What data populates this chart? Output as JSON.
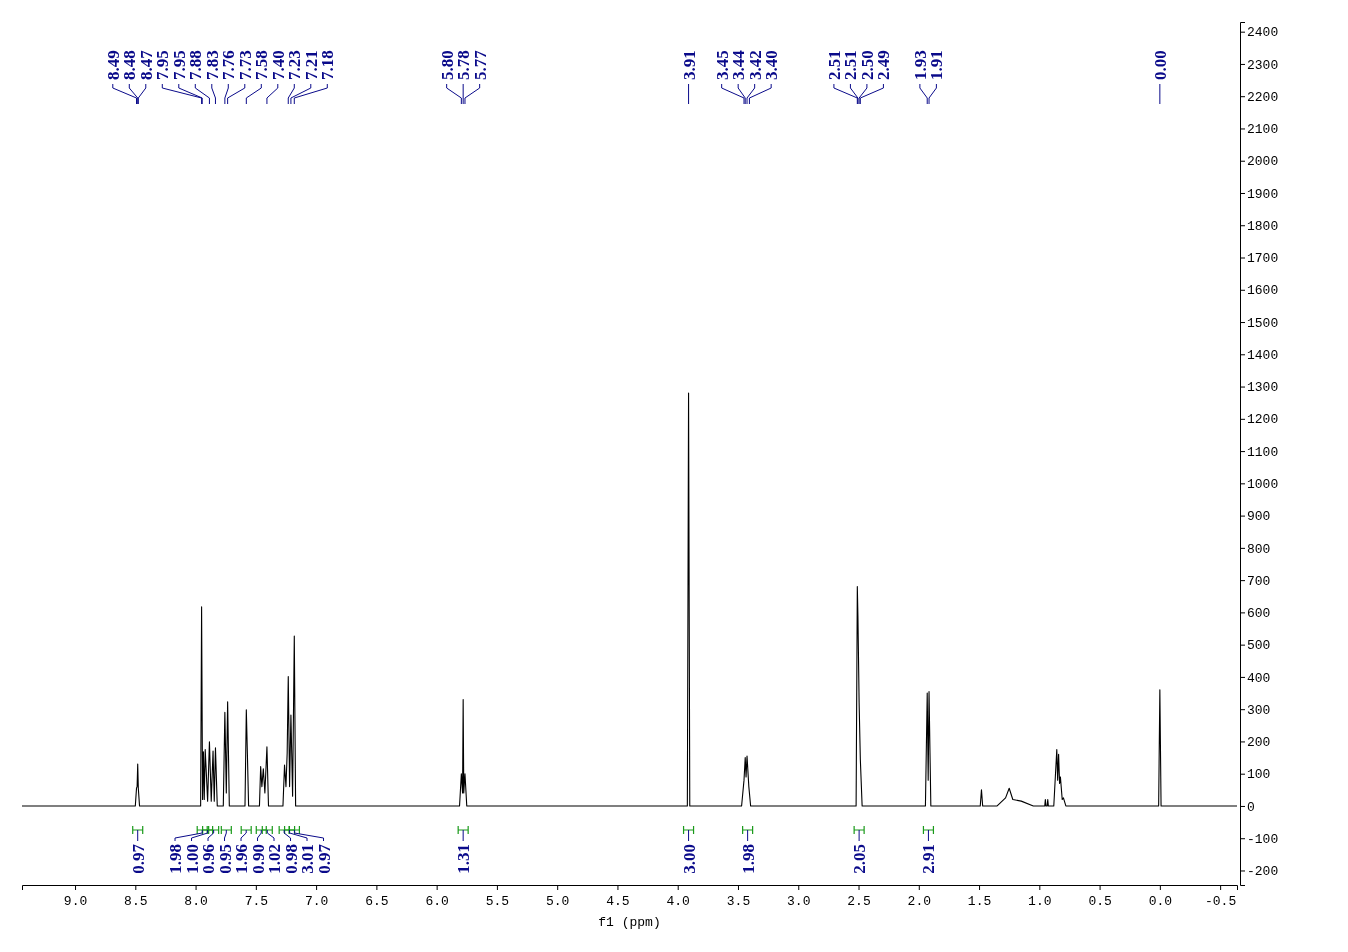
{
  "chart_data": {
    "type": "line",
    "xlabel": "f1 (ppm)",
    "xlim": [
      9.44,
      -0.64
    ],
    "ylim": [
      -245,
      2430
    ],
    "xticks": [
      {
        "value": 9,
        "label": "9.0"
      },
      {
        "value": 8.5,
        "label": "8.5"
      },
      {
        "value": 8,
        "label": "8.0"
      },
      {
        "value": 7.5,
        "label": "7.5"
      },
      {
        "value": 7,
        "label": "7.0"
      },
      {
        "value": 6.5,
        "label": "6.5"
      },
      {
        "value": 6,
        "label": "6.0"
      },
      {
        "value": 5.5,
        "label": "5.5"
      },
      {
        "value": 5,
        "label": "5.0"
      },
      {
        "value": 4.5,
        "label": "4.5"
      },
      {
        "value": 4,
        "label": "4.0"
      },
      {
        "value": 3.5,
        "label": "3.5"
      },
      {
        "value": 3,
        "label": "3.0"
      },
      {
        "value": 2.5,
        "label": "2.5"
      },
      {
        "value": 2,
        "label": "2.0"
      },
      {
        "value": 1.5,
        "label": "1.5"
      },
      {
        "value": 1,
        "label": "1.0"
      },
      {
        "value": 0.5,
        "label": "0.5"
      },
      {
        "value": 0,
        "label": "0.0"
      },
      {
        "value": -0.5,
        "label": "-0.5"
      }
    ],
    "yticks": [
      -200,
      -100,
      0,
      100,
      200,
      300,
      400,
      500,
      600,
      700,
      800,
      900,
      1000,
      1100,
      1200,
      1300,
      1400,
      1500,
      1600,
      1700,
      1800,
      1900,
      2000,
      2100,
      2200,
      2300,
      2400
    ],
    "grid": false,
    "marker": "none",
    "line_style": "solid",
    "series": [
      {
        "color": "#000000",
        "x": [
          9.44,
          8.5,
          8.49,
          8.485,
          8.48,
          8.475,
          8.465,
          7.97,
          7.958,
          7.95,
          7.942,
          7.935,
          7.928,
          7.92,
          7.9,
          7.885,
          7.87,
          7.855,
          7.845,
          7.835,
          7.82,
          7.77,
          7.757,
          7.745,
          7.734,
          7.72,
          7.59,
          7.579,
          7.57,
          7.56,
          7.47,
          7.46,
          7.45,
          7.438,
          7.425,
          7.408,
          7.395,
          7.275,
          7.262,
          7.25,
          7.24,
          7.231,
          7.22,
          7.209,
          7.195,
          7.181,
          7.17,
          5.81,
          5.795,
          5.785,
          5.78,
          5.775,
          5.765,
          5.75,
          3.92,
          3.91,
          3.9,
          3.47,
          3.45,
          3.44,
          3.433,
          3.425,
          3.41,
          3.395,
          2.52,
          2.51,
          2.505,
          2.495,
          2.485,
          2.47,
          1.945,
          1.93,
          1.922,
          1.915,
          1.9,
          1.49,
          1.48,
          1.47,
          1.35,
          1.28,
          1.25,
          1.22,
          1.15,
          1.05,
          0.955,
          0.95,
          0.945,
          0.935,
          0.93,
          0.925,
          0.88,
          0.855,
          0.848,
          0.84,
          0.832,
          0.825,
          0.81,
          0.8,
          0.78,
          0.01,
          0,
          -0.01,
          -0.64
        ],
        "values": [
          0,
          0,
          55,
          60,
          130,
          55,
          0,
          0,
          0,
          617,
          20,
          168,
          20,
          175,
          15,
          199,
          15,
          170,
          15,
          180,
          0,
          0,
          290,
          40,
          323,
          0,
          0,
          298,
          160,
          0,
          0,
          122,
          60,
          115,
          40,
          183,
          0,
          0,
          127,
          60,
          165,
          401,
          60,
          282,
          30,
          527,
          0,
          0,
          100,
          40,
          330,
          40,
          100,
          0,
          0,
          1280,
          0,
          0,
          80,
          150,
          90,
          155,
          60,
          0,
          0,
          680,
          590,
          320,
          145,
          0,
          0,
          350,
          80,
          355,
          0,
          0,
          50,
          0,
          0,
          25,
          55,
          20,
          15,
          0,
          0,
          20,
          0,
          0,
          20,
          0,
          0,
          175,
          80,
          160,
          70,
          90,
          20,
          25,
          0,
          0,
          360,
          0,
          0
        ]
      }
    ],
    "annotations": [
      {
        "text": "8.49",
        "x": 8.49
      },
      {
        "text": "8.48",
        "x": 8.48
      },
      {
        "text": "8.47",
        "x": 8.475
      },
      {
        "text": "7.95",
        "x": 7.95
      },
      {
        "text": "7.95",
        "x": 7.945
      },
      {
        "text": "7.88",
        "x": 7.885
      },
      {
        "text": "7.83",
        "x": 7.835
      },
      {
        "text": "7.76",
        "x": 7.757
      },
      {
        "text": "7.73",
        "x": 7.734
      },
      {
        "text": "7.58",
        "x": 7.579
      },
      {
        "text": "7.40",
        "x": 7.408
      },
      {
        "text": "7.23",
        "x": 7.231
      },
      {
        "text": "7.21",
        "x": 7.209
      },
      {
        "text": "7.18",
        "x": 7.181
      },
      {
        "text": "5.80",
        "x": 5.795
      },
      {
        "text": "5.78",
        "x": 5.78
      },
      {
        "text": "5.77",
        "x": 5.765
      },
      {
        "text": "3.91",
        "x": 3.91
      },
      {
        "text": "3.45",
        "x": 3.45
      },
      {
        "text": "3.44",
        "x": 3.44
      },
      {
        "text": "3.42",
        "x": 3.425
      },
      {
        "text": "3.40",
        "x": 3.405
      },
      {
        "text": "2.51",
        "x": 2.51
      },
      {
        "text": "2.51",
        "x": 2.505
      },
      {
        "text": "2.50",
        "x": 2.495
      },
      {
        "text": "2.49",
        "x": 2.485
      },
      {
        "text": "1.93",
        "x": 1.93
      },
      {
        "text": "1.91",
        "x": 1.915
      },
      {
        "text": "0.00",
        "x": 0
      },
      {
        "text": "0.97",
        "x": 8.48
      },
      {
        "text": "1.98",
        "x": 7.945
      },
      {
        "text": "1.00",
        "x": 7.9
      },
      {
        "text": "0.96",
        "x": 7.85
      },
      {
        "text": "0.95",
        "x": 7.745
      },
      {
        "text": "1.96",
        "x": 7.58
      },
      {
        "text": "0.90",
        "x": 7.455
      },
      {
        "text": "1.02",
        "x": 7.405
      },
      {
        "text": "0.98",
        "x": 7.265
      },
      {
        "text": "3.01",
        "x": 7.22
      },
      {
        "text": "0.97",
        "x": 7.18
      },
      {
        "text": "1.31",
        "x": 5.78
      },
      {
        "text": "3.00",
        "x": 3.91
      },
      {
        "text": "1.98",
        "x": 3.42
      },
      {
        "text": "2.05",
        "x": 2.495
      },
      {
        "text": "2.91",
        "x": 1.92
      }
    ]
  }
}
